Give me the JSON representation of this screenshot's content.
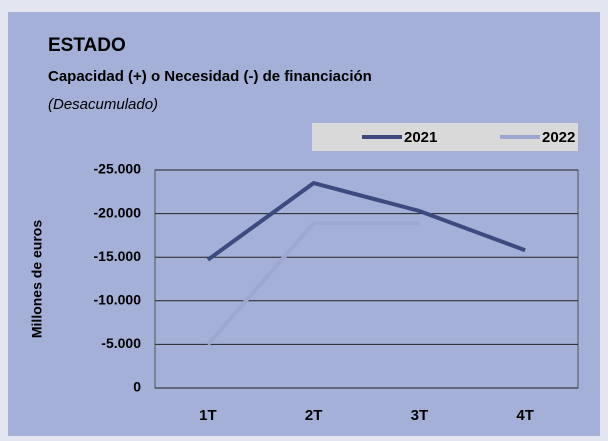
{
  "chart_data": {
    "type": "line",
    "title": "ESTADO",
    "subtitle": "Capacidad (+) o Necesidad (-) de financiación",
    "note": "(Desacumulado)",
    "y_label": "Millones de euros",
    "categories": [
      "1T",
      "2T",
      "3T",
      "4T"
    ],
    "series": [
      {
        "name": "2021",
        "color": "#3d4a80",
        "values": [
          -14700,
          -23500,
          -20300,
          -15800
        ]
      },
      {
        "name": "2022",
        "color": "#9ea7d0",
        "values": [
          -5000,
          -18900,
          -18900,
          null
        ]
      }
    ],
    "ylim": [
      0,
      -25000
    ],
    "yticks": [
      0,
      {
        "value": -5000,
        "label": "-5.000"
      },
      {
        "value": -10000,
        "label": "-10.000"
      },
      {
        "value": -15000,
        "label": "-15.000"
      },
      {
        "value": -20000,
        "label": "-20.000"
      },
      {
        "value": -25000,
        "label": "-25.000"
      }
    ],
    "grid": true,
    "legend": "top-right"
  }
}
